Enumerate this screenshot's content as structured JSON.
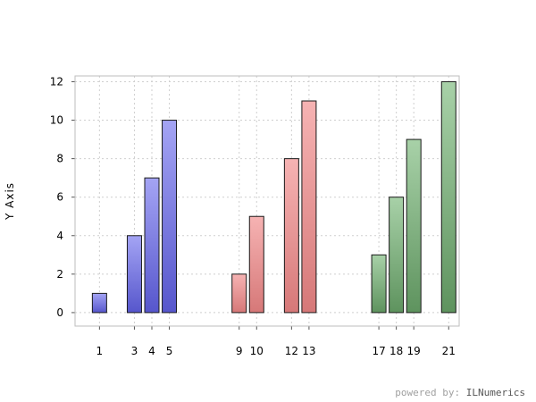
{
  "chart_data": {
    "type": "bar",
    "title": "",
    "xlabel": "",
    "ylabel": "Y Axis",
    "ylim": [
      -0.7,
      12.3
    ],
    "xlim": [
      -0.4,
      21.6
    ],
    "yticks": [
      0,
      2,
      4,
      6,
      8,
      10,
      12
    ],
    "grid": true,
    "series": [
      {
        "color_top": "#a4a4f4",
        "color_bottom": "#5656cc",
        "points": [
          {
            "x": 1,
            "label": "1",
            "value": 1
          },
          {
            "x": 3,
            "label": "3",
            "value": 4
          },
          {
            "x": 4,
            "label": "4",
            "value": 7
          },
          {
            "x": 5,
            "label": "5",
            "value": 10
          }
        ]
      },
      {
        "color_top": "#f6b3b3",
        "color_bottom": "#d67878",
        "points": [
          {
            "x": 9,
            "label": "9",
            "value": 2
          },
          {
            "x": 10,
            "label": "10",
            "value": 5
          },
          {
            "x": 12,
            "label": "12",
            "value": 8
          },
          {
            "x": 13,
            "label": "13",
            "value": 11
          }
        ]
      },
      {
        "color_top": "#a8d1a8",
        "color_bottom": "#5e935e",
        "points": [
          {
            "x": 17,
            "label": "17",
            "value": 3
          },
          {
            "x": 18,
            "label": "18",
            "value": 6
          },
          {
            "x": 19,
            "label": "19",
            "value": 9
          },
          {
            "x": 21,
            "label": "21",
            "value": 12
          }
        ]
      }
    ]
  },
  "footer": {
    "powered_prefix": "powered by: ",
    "powered_brand": "ILNumerics"
  }
}
